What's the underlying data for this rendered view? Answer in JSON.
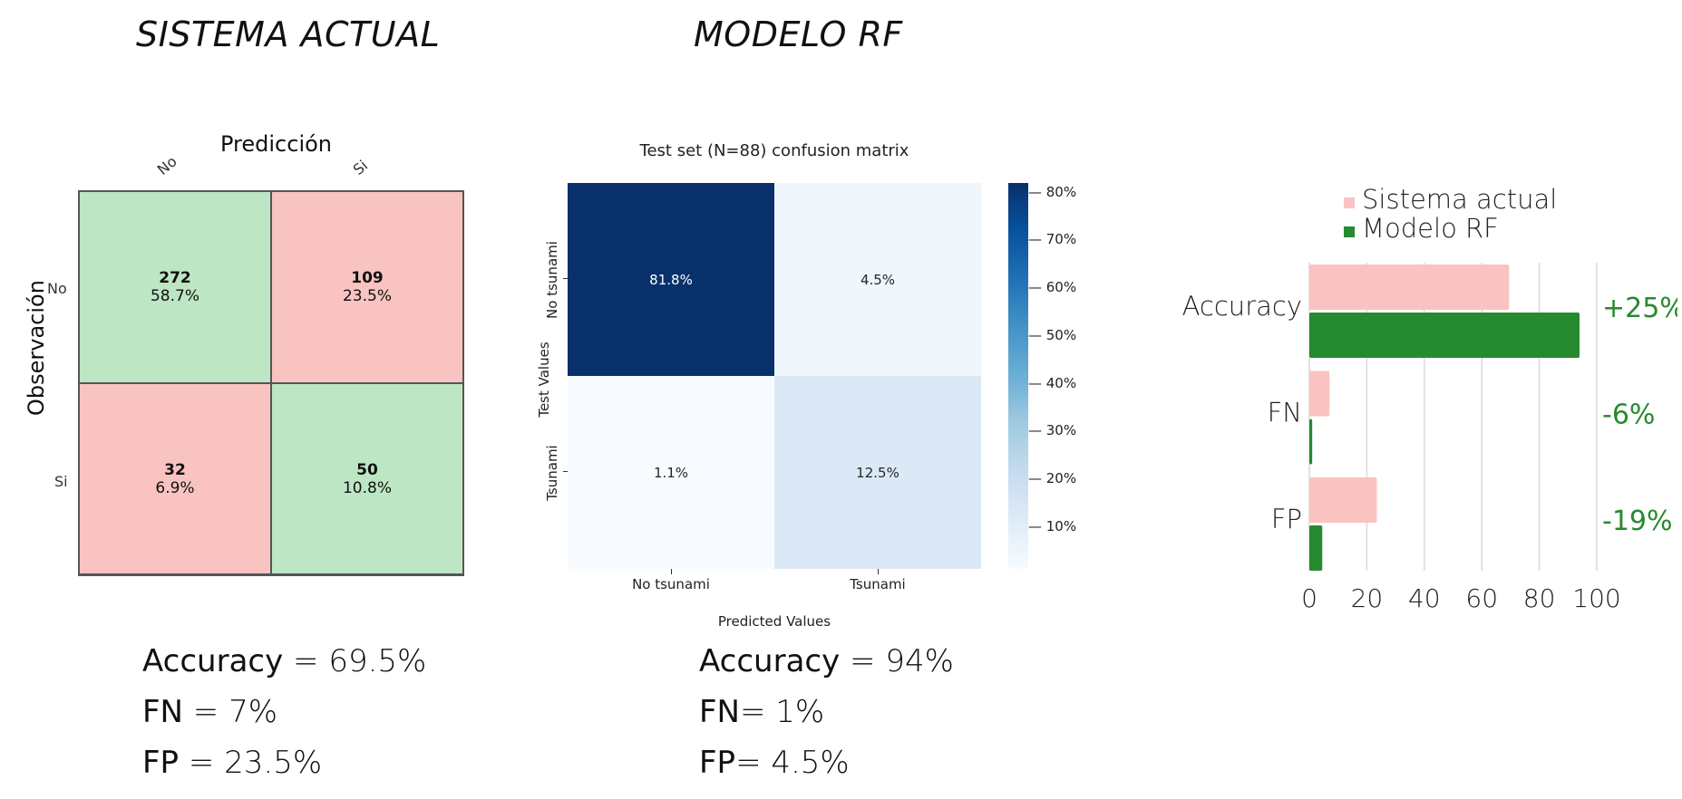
{
  "titles": {
    "left": "SISTEMA ACTUAL",
    "middle": "MODELO RF"
  },
  "cm_actual": {
    "xlabel": "Predicción",
    "ylabel": "Observación",
    "col_labels": [
      "No",
      "Si"
    ],
    "row_labels": [
      "No",
      "Si"
    ],
    "cells": [
      {
        "count": "272",
        "pct": "58.7%"
      },
      {
        "count": "109",
        "pct": "23.5%"
      },
      {
        "count": "32",
        "pct": "6.9%"
      },
      {
        "count": "50",
        "pct": "10.8%"
      }
    ],
    "colors": {
      "correct": "#bde6c4",
      "wrong": "#f8c3c0"
    }
  },
  "cm_rf": {
    "title": "Test set (N=88) confusion matrix",
    "xlabel": "Predicted Values",
    "ylabel": "Test Values",
    "col_labels": [
      "No tsunami",
      "Tsunami"
    ],
    "row_labels": [
      "No tsunami",
      "Tsunami"
    ],
    "cells": [
      {
        "pct": "81.8%",
        "value": 81.8
      },
      {
        "pct": "4.5%",
        "value": 4.5
      },
      {
        "pct": "1.1%",
        "value": 1.1
      },
      {
        "pct": "12.5%",
        "value": 12.5
      }
    ],
    "colorbar_ticks": [
      "80%",
      "70%",
      "60%",
      "50%",
      "40%",
      "30%",
      "20%",
      "10%"
    ],
    "colorbar_range": [
      1.1,
      81.8
    ]
  },
  "metrics_actual": {
    "accuracy_label": "Accuracy",
    "accuracy_value": " = 69.5%",
    "fn_label": "FN",
    "fn_value": " = 7%",
    "fp_label": "FP",
    "fp_value": " = 23.5%"
  },
  "metrics_rf": {
    "accuracy_label": "Accuracy",
    "accuracy_value": " = 94%",
    "fn_label": "FN",
    "fn_value": "= 1%",
    "fp_label": "FP",
    "fp_value": "= 4.5%"
  },
  "chart_data": {
    "type": "bar",
    "orientation": "horizontal",
    "categories": [
      "Accuracy",
      "FN",
      "FP"
    ],
    "series": [
      {
        "name": "Sistema actual",
        "values": [
          69.5,
          7,
          23.5
        ],
        "color": "#f8c3c0"
      },
      {
        "name": "Modelo RF",
        "values": [
          94,
          1,
          4.5
        ],
        "color": "#268a30"
      }
    ],
    "xlim": [
      0,
      100
    ],
    "xticks": [
      "0",
      "20",
      "40",
      "60",
      "80",
      "100"
    ],
    "deltas": [
      "+25%",
      "-6%",
      "-19%"
    ],
    "delta_color": "#268a30",
    "grid": true,
    "legend": "top"
  }
}
